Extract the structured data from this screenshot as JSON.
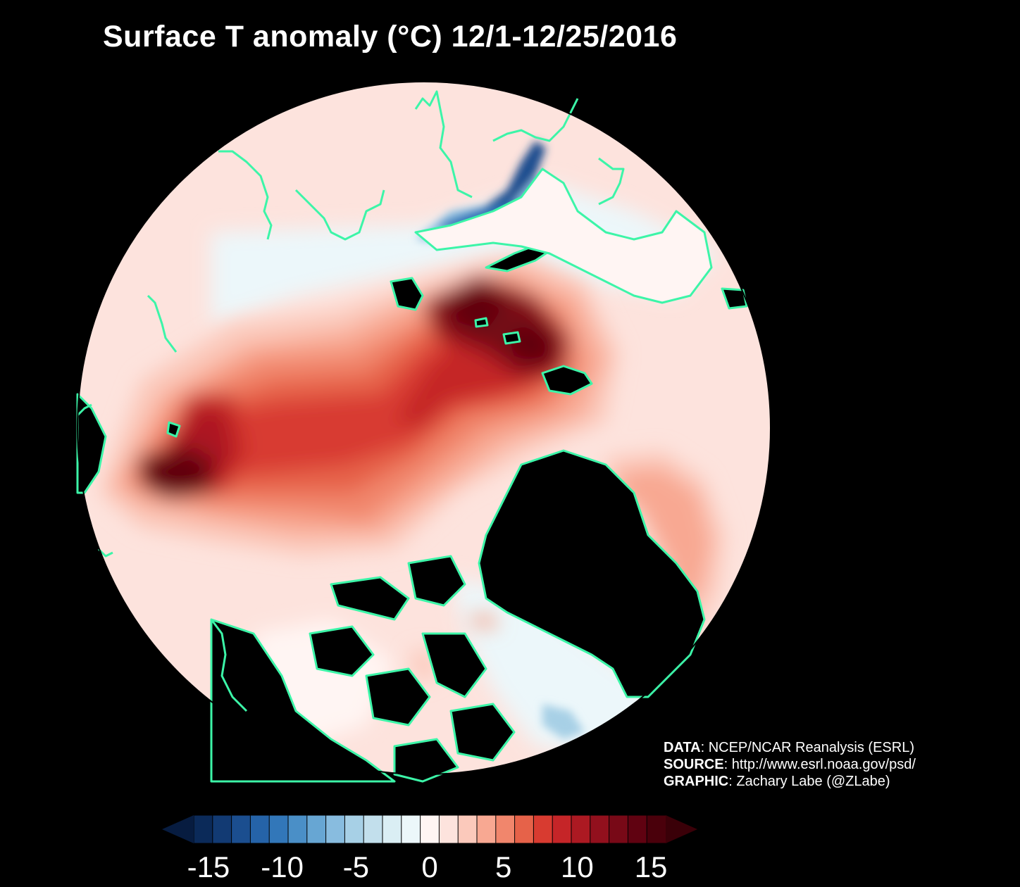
{
  "title": "Surface T anomaly (°C) 12/1-12/25/2016",
  "credits": {
    "data_label": "DATA",
    "data_value": ": NCEP/NCAR Reanalysis (ESRL)",
    "source_label": "SOURCE",
    "source_value": ": http://www.esrl.noaa.gov/psd/",
    "graphic_label": "GRAPHIC",
    "graphic_value": ": Zachary Labe (@ZLabe)"
  },
  "colorbar": {
    "min": -16,
    "max": 16,
    "ticks": [
      -15,
      -10,
      -5,
      0,
      5,
      10,
      15
    ],
    "tick_labels": [
      "-15",
      "-10",
      "-5",
      "0",
      "5",
      "10",
      "15"
    ],
    "colors": [
      "#0b2a59",
      "#123a73",
      "#1b4e8f",
      "#2563a8",
      "#3277b9",
      "#4a8fc7",
      "#67a6d3",
      "#88bcdf",
      "#a7d0e6",
      "#c2dfec",
      "#daeef4",
      "#ecf7fa",
      "#fff5f3",
      "#fde3dd",
      "#fbc9bb",
      "#f8a892",
      "#f1866c",
      "#e66249",
      "#d83b30",
      "#c52528",
      "#ac1922",
      "#92101d",
      "#780917",
      "#600211",
      "#4a000b"
    ]
  },
  "colors": {
    "coastline": "#3cf5a8",
    "background": "#000000"
  }
}
